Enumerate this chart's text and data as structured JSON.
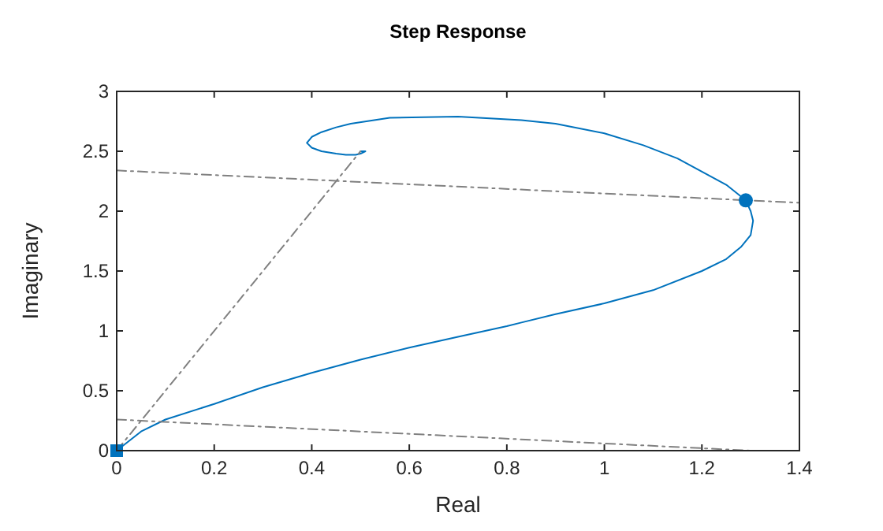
{
  "chart_data": {
    "type": "line",
    "title": "Step Response",
    "xlabel": "Real",
    "ylabel": "Imaginary",
    "xlim": [
      0,
      1.4
    ],
    "ylim": [
      0,
      3
    ],
    "xticks": [
      0,
      0.2,
      0.4,
      0.6,
      0.8,
      1,
      1.2,
      1.4
    ],
    "yticks": [
      0,
      0.5,
      1,
      1.5,
      2,
      2.5,
      3
    ],
    "grid": false,
    "series": [
      {
        "color": "#0072bd",
        "line_style": "solid",
        "x": [
          0,
          0.05,
          0.1,
          0.2,
          0.3,
          0.4,
          0.5,
          0.6,
          0.7,
          0.8,
          0.83,
          0.9,
          1.0,
          1.1,
          1.2,
          1.25,
          1.28,
          1.3,
          1.305,
          1.3,
          1.29,
          1.25,
          1.2,
          1.15,
          1.08,
          1.0,
          0.9,
          0.83,
          0.7,
          0.56,
          0.48,
          0.45,
          0.42,
          0.4,
          0.39,
          0.4,
          0.42,
          0.45,
          0.47,
          0.49,
          0.5,
          0.51,
          0.5
        ],
        "values": [
          0,
          0.16,
          0.26,
          0.39,
          0.53,
          0.65,
          0.76,
          0.86,
          0.95,
          1.04,
          1.07,
          1.14,
          1.23,
          1.34,
          1.5,
          1.6,
          1.7,
          1.8,
          1.92,
          2.0,
          2.09,
          2.22,
          2.33,
          2.44,
          2.55,
          2.65,
          2.73,
          2.76,
          2.79,
          2.78,
          2.73,
          2.7,
          2.66,
          2.62,
          2.57,
          2.53,
          2.5,
          2.48,
          2.47,
          2.47,
          2.48,
          2.5,
          2.5
        ]
      },
      {
        "color": "#808080",
        "line_style": "dashed",
        "x": [
          0,
          1.4
        ],
        "values": [
          2.34,
          2.07
        ]
      },
      {
        "color": "#808080",
        "line_style": "dashed",
        "x": [
          0,
          1.3
        ],
        "values": [
          0.26,
          0
        ]
      },
      {
        "color": "#808080",
        "line_style": "dashed",
        "x": [
          0,
          0.5
        ],
        "values": [
          0,
          2.5
        ]
      },
      {
        "type": "scatter",
        "color": "#0072bd",
        "marker": "square",
        "x": [
          0
        ],
        "values": [
          0
        ]
      },
      {
        "type": "scatter",
        "color": "#0072bd",
        "marker": "circle",
        "x": [
          1.29
        ],
        "values": [
          2.09
        ]
      }
    ]
  }
}
